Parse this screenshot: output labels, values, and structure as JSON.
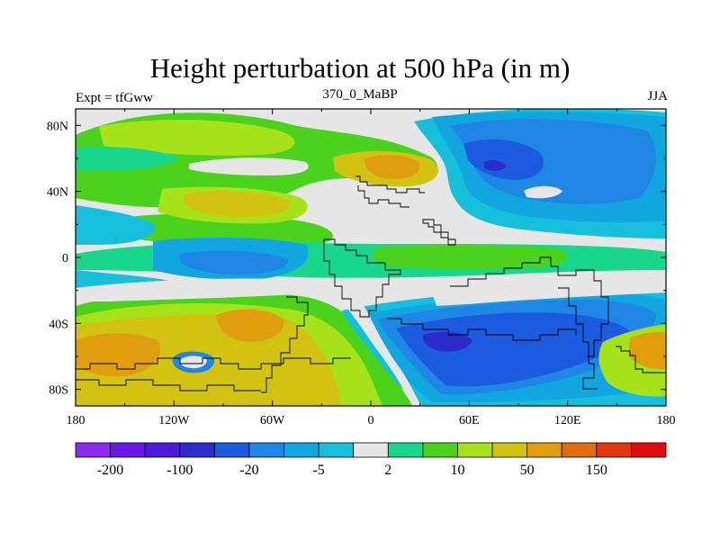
{
  "header": {
    "title": "Height perturbation at 500 hPa (in m)",
    "experiment": "Expt = tfGww",
    "center": "370_0_MaBP",
    "season": "JJA"
  },
  "axes": {
    "x_ticks": [
      {
        "value": -180,
        "label": "180"
      },
      {
        "value": -120,
        "label": "120W"
      },
      {
        "value": -60,
        "label": "60W"
      },
      {
        "value": 0,
        "label": "0"
      },
      {
        "value": 60,
        "label": "60E"
      },
      {
        "value": 120,
        "label": "120E"
      },
      {
        "value": 180,
        "label": "180"
      }
    ],
    "y_ticks": [
      {
        "value": 80,
        "label": "80N"
      },
      {
        "value": 40,
        "label": "40N"
      },
      {
        "value": 0,
        "label": "0"
      },
      {
        "value": -40,
        "label": "40S"
      },
      {
        "value": -80,
        "label": "80S"
      }
    ],
    "lon_range": [
      -180,
      180
    ],
    "lat_range": [
      -90,
      90
    ]
  },
  "colorbar": {
    "colors": [
      "#8c2bf0",
      "#6a18e8",
      "#4a1ad8",
      "#2a2ccc",
      "#1c5ae0",
      "#1f86e6",
      "#12a6e0",
      "#16c0dc",
      "#e6e6e6",
      "#18d68c",
      "#4ad21c",
      "#a6e21a",
      "#d2c212",
      "#e09e0e",
      "#e06a10",
      "#e2360e",
      "#e00c10"
    ],
    "labels": [
      {
        "after_box": 1,
        "text": "-200"
      },
      {
        "after_box": 3,
        "text": "-100"
      },
      {
        "after_box": 5,
        "text": "-20"
      },
      {
        "after_box": 7,
        "text": "-5"
      },
      {
        "after_box": 9,
        "text": "2"
      },
      {
        "after_box": 11,
        "text": "10"
      },
      {
        "after_box": 13,
        "text": "50"
      },
      {
        "after_box": 15,
        "text": "150"
      }
    ]
  },
  "field": {
    "levels": [
      {
        "color": "#e6e6e6",
        "value": 0
      },
      {
        "color": "#16c0dc",
        "value": -3
      },
      {
        "color": "#12a6e0",
        "value": -8
      },
      {
        "color": "#1f86e6",
        "value": -15
      },
      {
        "color": "#1c5ae0",
        "value": -30
      },
      {
        "color": "#2a2ccc",
        "value": -80
      },
      {
        "color": "#18d68c",
        "value": 3
      },
      {
        "color": "#4ad21c",
        "value": 8
      },
      {
        "color": "#a6e21a",
        "value": 20
      },
      {
        "color": "#d2c212",
        "value": 40
      },
      {
        "color": "#e09e0e",
        "value": 70
      }
    ],
    "blobs": [
      {
        "lon": -150,
        "lat": 72,
        "level": "#4ad21c",
        "rx": 30,
        "ry": 10
      },
      {
        "lon": -90,
        "lat": 55,
        "level": "#4ad21c",
        "rx": 40,
        "ry": 12
      },
      {
        "lon": -40,
        "lat": 60,
        "level": "#a6e21a",
        "rx": 30,
        "ry": 14
      },
      {
        "lon": 20,
        "lat": 55,
        "level": "#d2c212",
        "rx": 28,
        "ry": 16
      },
      {
        "lon": 25,
        "lat": 55,
        "level": "#e09e0e",
        "rx": 14,
        "ry": 8
      },
      {
        "lon": -95,
        "lat": 30,
        "level": "#d2c212",
        "rx": 35,
        "ry": 10
      },
      {
        "lon": -165,
        "lat": 45,
        "level": "#1f86e6",
        "rx": 12,
        "ry": 8
      },
      {
        "lon": -140,
        "lat": 10,
        "level": "#12a6e0",
        "rx": 25,
        "ry": 12
      },
      {
        "lon": -60,
        "lat": 8,
        "level": "#1c5ae0",
        "rx": 20,
        "ry": 10
      },
      {
        "lon": 90,
        "lat": 55,
        "level": "#1c5ae0",
        "rx": 45,
        "ry": 20
      },
      {
        "lon": 75,
        "lat": 55,
        "level": "#2a2ccc",
        "rx": 10,
        "ry": 6
      },
      {
        "lon": 20,
        "lat": -5,
        "level": "#4ad21c",
        "rx": 30,
        "ry": 8
      },
      {
        "lon": 10,
        "lat": -25,
        "level": "#d2c212",
        "rx": 25,
        "ry": 10
      },
      {
        "lon": -100,
        "lat": -40,
        "level": "#d2c212",
        "rx": 45,
        "ry": 18
      },
      {
        "lon": -75,
        "lat": -40,
        "level": "#e09e0e",
        "rx": 15,
        "ry": 8
      },
      {
        "lon": -160,
        "lat": -55,
        "level": "#d2c212",
        "rx": 30,
        "ry": 18
      },
      {
        "lon": -165,
        "lat": -55,
        "level": "#e09e0e",
        "rx": 18,
        "ry": 10
      },
      {
        "lon": 60,
        "lat": -55,
        "level": "#1c5ae0",
        "rx": 55,
        "ry": 20
      },
      {
        "lon": 45,
        "lat": -55,
        "level": "#2a2ccc",
        "rx": 15,
        "ry": 6
      },
      {
        "lon": 150,
        "lat": -38,
        "level": "#1c5ae0",
        "rx": 20,
        "ry": 10
      },
      {
        "lon": 170,
        "lat": -65,
        "level": "#d2c212",
        "rx": 15,
        "ry": 15
      }
    ]
  }
}
